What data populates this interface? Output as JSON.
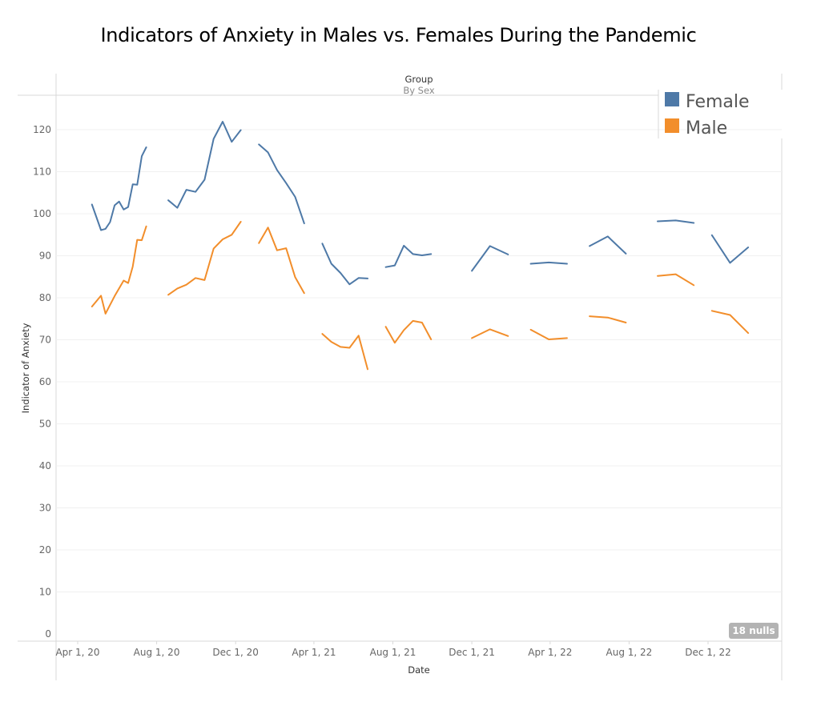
{
  "chart_data": {
    "type": "line",
    "title": "Indicators of Anxiety in Males vs. Females During the Pandemic",
    "column_header": {
      "title": "Group",
      "subtitle": "By Sex"
    },
    "xlabel": "Date",
    "ylabel": "Indicator of Anxiety",
    "ylim": [
      0,
      120
    ],
    "y_ticks": [
      0,
      10,
      20,
      30,
      40,
      50,
      60,
      70,
      80,
      90,
      100,
      110,
      120
    ],
    "x_ticks": [
      "Apr 1, 20",
      "Aug 1, 20",
      "Dec 1, 20",
      "Apr 1, 21",
      "Aug 1, 21",
      "Dec 1, 21",
      "Apr 1, 22",
      "Aug 1, 22",
      "Dec 1, 22"
    ],
    "xlim": [
      "2020-03-20",
      "2023-03-20"
    ],
    "grid": true,
    "legend_position": "top-right",
    "nulls_badge": "18 nulls",
    "colors": {
      "Female": "#4e79a7",
      "Male": "#f28e2b"
    },
    "series": [
      {
        "name": "Female",
        "segments": [
          [
            [
              "2020-04-23",
              102.2
            ],
            [
              "2020-05-07",
              96.1
            ],
            [
              "2020-05-14",
              96.4
            ],
            [
              "2020-05-21",
              98.0
            ],
            [
              "2020-05-28",
              102.0
            ],
            [
              "2020-06-04",
              102.9
            ],
            [
              "2020-06-11",
              101.0
            ],
            [
              "2020-06-18",
              101.6
            ],
            [
              "2020-06-25",
              107.0
            ],
            [
              "2020-07-02",
              106.9
            ],
            [
              "2020-07-09",
              113.7
            ],
            [
              "2020-07-16",
              115.8
            ]
          ],
          [
            [
              "2020-08-19",
              103.2
            ],
            [
              "2020-09-02",
              101.4
            ],
            [
              "2020-09-16",
              105.7
            ],
            [
              "2020-09-30",
              105.2
            ],
            [
              "2020-10-14",
              108.1
            ],
            [
              "2020-10-28",
              117.8
            ],
            [
              "2020-11-11",
              121.9
            ],
            [
              "2020-11-25",
              117.1
            ],
            [
              "2020-12-09",
              119.9
            ]
          ],
          [
            [
              "2021-01-06",
              116.5
            ],
            [
              "2021-01-20",
              114.6
            ],
            [
              "2021-02-03",
              110.4
            ],
            [
              "2021-02-17",
              107.3
            ],
            [
              "2021-03-03",
              104.0
            ],
            [
              "2021-03-17",
              97.7
            ]
          ],
          [
            [
              "2021-04-14",
              92.9
            ],
            [
              "2021-04-28",
              88.1
            ],
            [
              "2021-05-12",
              85.9
            ],
            [
              "2021-05-26",
              83.2
            ],
            [
              "2021-06-09",
              84.7
            ],
            [
              "2021-06-23",
              84.6
            ]
          ],
          [
            [
              "2021-07-21",
              87.3
            ],
            [
              "2021-08-04",
              87.7
            ],
            [
              "2021-08-18",
              92.4
            ],
            [
              "2021-09-01",
              90.4
            ],
            [
              "2021-09-15",
              90.1
            ],
            [
              "2021-09-29",
              90.4
            ]
          ],
          [
            [
              "2021-12-01",
              86.4
            ],
            [
              "2021-12-29",
              92.3
            ],
            [
              "2022-01-26",
              90.3
            ]
          ],
          [
            [
              "2022-03-02",
              88.1
            ],
            [
              "2022-03-30",
              88.4
            ],
            [
              "2022-04-27",
              88.1
            ]
          ],
          [
            [
              "2022-06-01",
              92.3
            ],
            [
              "2022-06-29",
              94.6
            ],
            [
              "2022-07-27",
              90.5
            ]
          ],
          [
            [
              "2022-09-14",
              98.2
            ],
            [
              "2022-10-12",
              98.4
            ],
            [
              "2022-11-09",
              97.8
            ]
          ],
          [
            [
              "2022-12-07",
              94.9
            ],
            [
              "2023-01-04",
              88.3
            ],
            [
              "2023-02-01",
              92.0
            ]
          ]
        ]
      },
      {
        "name": "Male",
        "segments": [
          [
            [
              "2020-04-23",
              77.9
            ],
            [
              "2020-05-07",
              80.5
            ],
            [
              "2020-05-14",
              76.2
            ],
            [
              "2020-05-28",
              80.4
            ],
            [
              "2020-06-11",
              84.1
            ],
            [
              "2020-06-18",
              83.5
            ],
            [
              "2020-06-25",
              87.4
            ],
            [
              "2020-07-02",
              93.8
            ],
            [
              "2020-07-09",
              93.7
            ],
            [
              "2020-07-16",
              97.0
            ]
          ],
          [
            [
              "2020-08-19",
              80.7
            ],
            [
              "2020-09-02",
              82.2
            ],
            [
              "2020-09-16",
              83.1
            ],
            [
              "2020-09-30",
              84.7
            ],
            [
              "2020-10-14",
              84.2
            ],
            [
              "2020-10-28",
              91.7
            ],
            [
              "2020-11-11",
              93.9
            ],
            [
              "2020-11-25",
              95.0
            ],
            [
              "2020-12-09",
              98.1
            ]
          ],
          [
            [
              "2021-01-06",
              93.0
            ],
            [
              "2021-01-20",
              96.7
            ],
            [
              "2021-02-03",
              91.3
            ],
            [
              "2021-02-17",
              91.8
            ],
            [
              "2021-03-03",
              84.9
            ],
            [
              "2021-03-17",
              81.1
            ]
          ],
          [
            [
              "2021-04-14",
              71.4
            ],
            [
              "2021-04-28",
              69.5
            ],
            [
              "2021-05-12",
              68.3
            ],
            [
              "2021-05-26",
              68.1
            ],
            [
              "2021-06-09",
              71.0
            ],
            [
              "2021-06-23",
              63.0
            ]
          ],
          [
            [
              "2021-07-21",
              73.1
            ],
            [
              "2021-08-04",
              69.3
            ],
            [
              "2021-08-18",
              72.3
            ],
            [
              "2021-09-01",
              74.5
            ],
            [
              "2021-09-15",
              74.1
            ],
            [
              "2021-09-29",
              70.1
            ]
          ],
          [
            [
              "2021-12-01",
              70.4
            ],
            [
              "2021-12-29",
              72.5
            ],
            [
              "2022-01-26",
              70.9
            ]
          ],
          [
            [
              "2022-03-02",
              72.4
            ],
            [
              "2022-03-30",
              70.1
            ],
            [
              "2022-04-27",
              70.4
            ]
          ],
          [
            [
              "2022-06-01",
              75.6
            ],
            [
              "2022-06-29",
              75.3
            ],
            [
              "2022-07-27",
              74.1
            ]
          ],
          [
            [
              "2022-09-14",
              85.2
            ],
            [
              "2022-10-12",
              85.6
            ],
            [
              "2022-11-09",
              83.0
            ]
          ],
          [
            [
              "2022-12-07",
              76.9
            ],
            [
              "2023-01-04",
              75.9
            ],
            [
              "2023-02-01",
              71.6
            ]
          ]
        ]
      }
    ]
  }
}
